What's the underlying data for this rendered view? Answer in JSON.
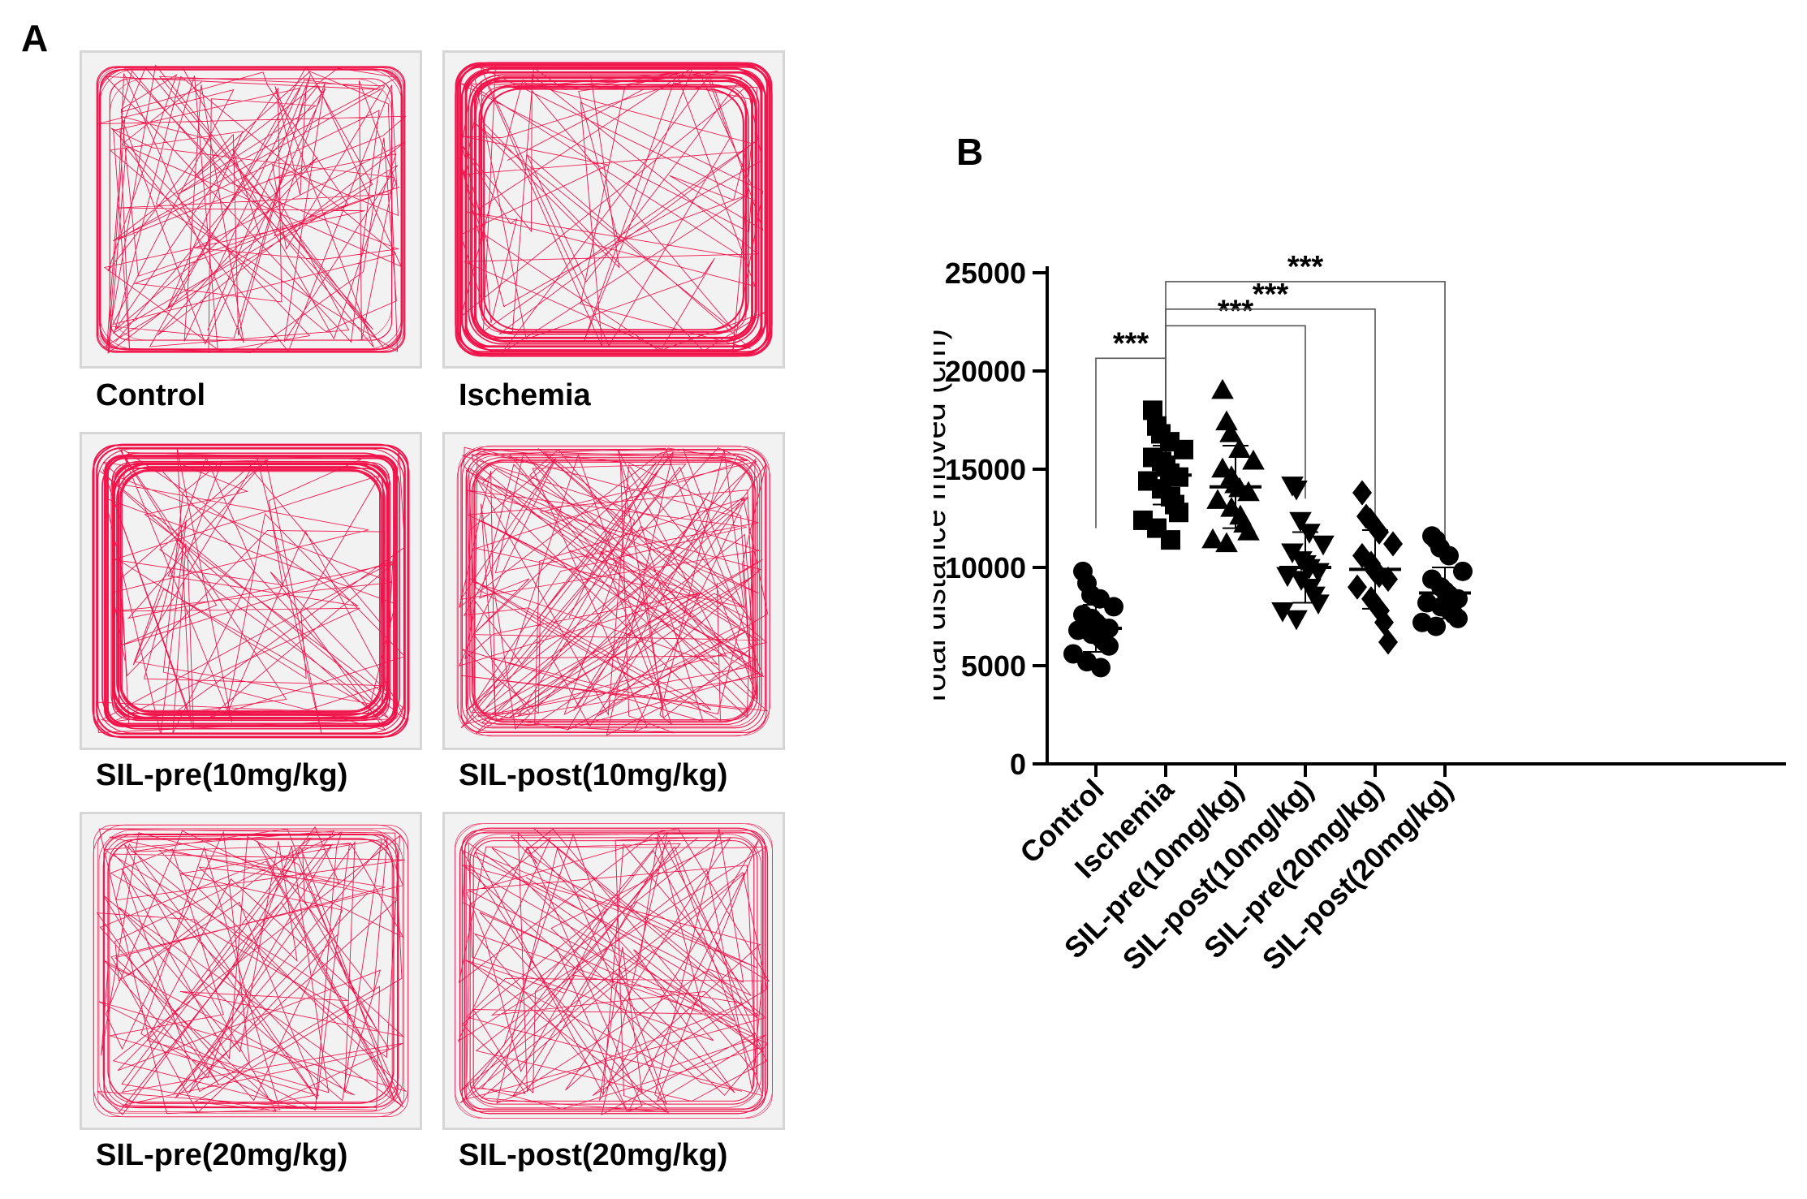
{
  "panel_a": {
    "letter": "A",
    "tracks": [
      {
        "label": "Control",
        "pattern": "uniform"
      },
      {
        "label": "Ischemia",
        "pattern": "thigmotaxis"
      },
      {
        "label": "SIL-pre(10mg/kg)",
        "pattern": "thigmotaxis"
      },
      {
        "label": "SIL-post(10mg/kg)",
        "pattern": "dense"
      },
      {
        "label": "SIL-pre(20mg/kg)",
        "pattern": "uniform"
      },
      {
        "label": "SIL-post(20mg/kg)",
        "pattern": "uniform"
      }
    ],
    "track_color": "#f0144b"
  },
  "panel_b": {
    "letter": "B"
  },
  "chart_data": {
    "type": "scatter",
    "title": "",
    "xlabel": "",
    "ylabel": "Total distance moved (cm)",
    "ylim": [
      0,
      25000
    ],
    "yticks": [
      0,
      5000,
      10000,
      15000,
      20000,
      25000
    ],
    "categories": [
      "Control",
      "Ischemia",
      "SIL-pre(10mg/kg)",
      "SIL-post(10mg/kg)",
      "SIL-pre(20mg/kg)",
      "SIL-post(20mg/kg)"
    ],
    "series": [
      {
        "name": "Control",
        "marker": "circle",
        "mean": 6900,
        "sd": 1200,
        "values": [
          9800,
          9200,
          8600,
          8400,
          8000,
          7600,
          7400,
          7200,
          7000,
          6900,
          6800,
          6600,
          6400,
          6200,
          6000,
          5600,
          5200,
          4900
        ]
      },
      {
        "name": "Ischemia",
        "marker": "square",
        "mean": 14700,
        "sd": 1500,
        "values": [
          18000,
          17200,
          16800,
          16400,
          16000,
          15600,
          15400,
          15200,
          14800,
          14600,
          14400,
          14000,
          13600,
          13200,
          12800,
          12400,
          12000,
          11400
        ]
      },
      {
        "name": "SIL-pre(10mg/kg)",
        "marker": "triangle-up",
        "mean": 14100,
        "sd": 2100,
        "values": [
          19000,
          17400,
          16800,
          16000,
          15400,
          15000,
          14600,
          14200,
          14000,
          13800,
          13400,
          13000,
          12600,
          12200,
          11800,
          11400,
          11200
        ]
      },
      {
        "name": "SIL-post(10mg/kg)",
        "marker": "triangle-down",
        "mean": 10000,
        "sd": 1800,
        "values": [
          14200,
          14000,
          12400,
          11800,
          11200,
          10800,
          10400,
          10200,
          10000,
          9800,
          9600,
          9400,
          9000,
          8600,
          8200,
          7800,
          7400
        ]
      },
      {
        "name": "SIL-pre(20mg/kg)",
        "marker": "diamond",
        "mean": 9900,
        "sd": 2000,
        "values": [
          13800,
          12600,
          12400,
          11800,
          11200,
          10600,
          10200,
          9800,
          9600,
          9400,
          9000,
          8400,
          7800,
          7200,
          6200
        ]
      },
      {
        "name": "SIL-post(20mg/kg)",
        "marker": "circle",
        "mean": 8700,
        "sd": 1300,
        "values": [
          11600,
          11400,
          11000,
          10600,
          9800,
          9400,
          9000,
          8800,
          8600,
          8400,
          8200,
          8000,
          7800,
          7600,
          7400,
          7200,
          7000
        ]
      }
    ],
    "significance": [
      {
        "from": "Control",
        "to": "Ischemia",
        "label": "***"
      },
      {
        "from": "Ischemia",
        "to": "SIL-post(10mg/kg)",
        "label": "***"
      },
      {
        "from": "Ischemia",
        "to": "SIL-pre(20mg/kg)",
        "label": "***"
      },
      {
        "from": "Ischemia",
        "to": "SIL-post(20mg/kg)",
        "label": "***"
      }
    ]
  }
}
